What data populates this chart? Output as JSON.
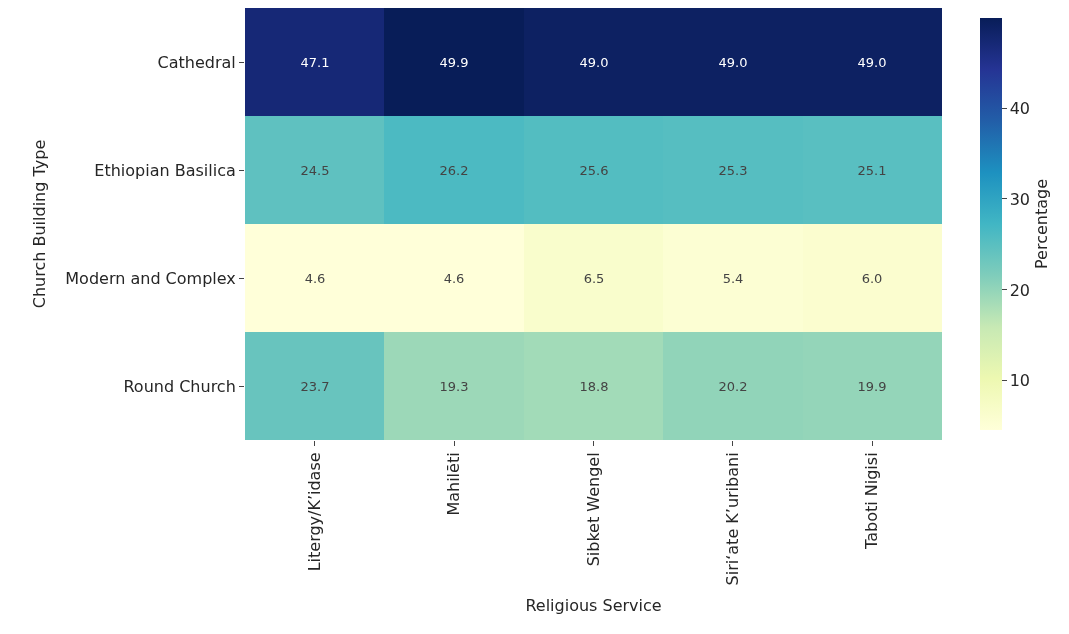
{
  "chart_data": {
    "type": "heatmap",
    "xlabel": "Religious Service",
    "ylabel": "Church Building Type",
    "clabel": "Percentage",
    "categories": [
      "Litergy/K’idase",
      "Mahilēti",
      "Sibket Wengel",
      "Siri‘ate K’uribani",
      "Taboti Nigisi"
    ],
    "y_categories": [
      "Cathedral",
      "Ethiopian Basilica",
      "Modern and Complex",
      "Round Church"
    ],
    "cells": [
      [
        47.1,
        49.9,
        49.0,
        49.0,
        49.0
      ],
      [
        24.5,
        26.2,
        25.6,
        25.3,
        25.1
      ],
      [
        4.6,
        4.6,
        6.5,
        5.4,
        6.0
      ],
      [
        23.7,
        19.3,
        18.8,
        20.2,
        19.9
      ]
    ],
    "cell_labels": [
      [
        "47.1",
        "49.9",
        "49.0",
        "49.0",
        "49.0"
      ],
      [
        "24.5",
        "26.2",
        "25.6",
        "25.3",
        "25.1"
      ],
      [
        "4.6",
        "4.6",
        "6.5",
        "5.4",
        "6.0"
      ],
      [
        "23.7",
        "19.3",
        "18.8",
        "20.2",
        "19.9"
      ]
    ],
    "clim": [
      4.6,
      49.9
    ],
    "cticks": [
      10,
      20,
      30,
      40
    ]
  }
}
